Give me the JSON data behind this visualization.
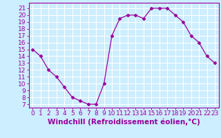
{
  "hours": [
    0,
    1,
    2,
    3,
    4,
    5,
    6,
    7,
    8,
    9,
    10,
    11,
    12,
    13,
    14,
    15,
    16,
    17,
    18,
    19,
    20,
    21,
    22,
    23
  ],
  "values": [
    15,
    14,
    12,
    11,
    9.5,
    8,
    7.5,
    7,
    7,
    10,
    17,
    19.5,
    20,
    20,
    19.5,
    21,
    21,
    21,
    20,
    19,
    17,
    16,
    14,
    13
  ],
  "line_color": "#990099",
  "marker": "D",
  "marker_size": 2.5,
  "bg_color": "#cceeff",
  "grid_color": "#ffffff",
  "ylabel_ticks": [
    7,
    8,
    9,
    10,
    11,
    12,
    13,
    14,
    15,
    16,
    17,
    18,
    19,
    20,
    21
  ],
  "xlabel": "Windchill (Refroidissement éolien,°C)",
  "xlabel_fontsize": 7.5,
  "tick_fontsize": 6.5,
  "ylim": [
    6.5,
    21.8
  ],
  "xlim": [
    -0.5,
    23.5
  ]
}
